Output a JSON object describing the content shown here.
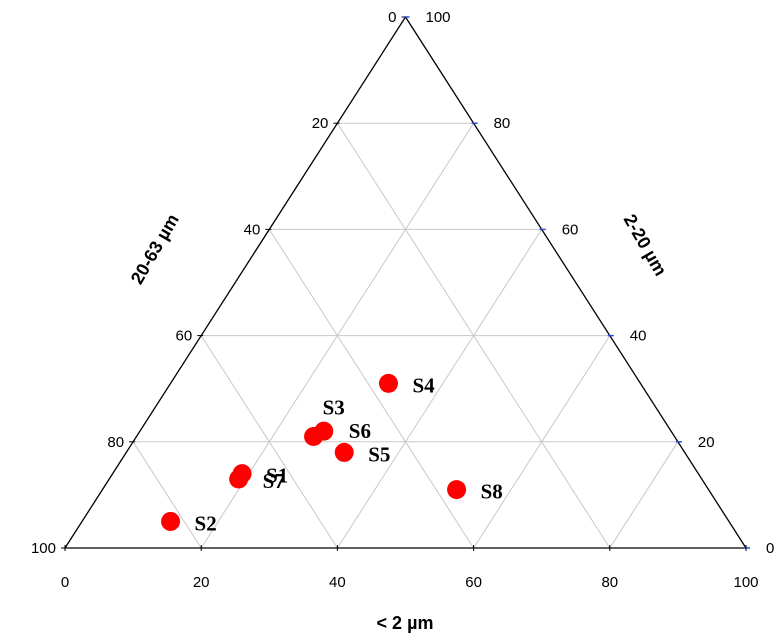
{
  "chart_data": {
    "type": "scatter",
    "subtype": "ternary",
    "axes": {
      "bottom": {
        "label": "< 2 µm",
        "ticks": [
          "0",
          "20",
          "40",
          "60",
          "80",
          "100"
        ],
        "range": [
          0,
          100
        ]
      },
      "left": {
        "label": "20-63 µm",
        "ticks": [
          "0",
          "20",
          "40",
          "60",
          "80",
          "100"
        ],
        "range": [
          0,
          100
        ]
      },
      "right": {
        "label": "2-20 µm",
        "ticks": [
          "0",
          "20",
          "40",
          "60",
          "80",
          "100"
        ],
        "range": [
          0,
          100
        ]
      }
    },
    "grid": true,
    "grid_step": 20,
    "colors": {
      "points": "#ff0000",
      "grid": "#c8c8c8",
      "frame": "#000000",
      "right_ticks": "#2a4fd6"
    },
    "points": [
      {
        "label": "S1",
        "clay": 19,
        "silt_2_20": 14,
        "silt_20_63": 67
      },
      {
        "label": "S2",
        "clay": 13,
        "silt_2_20": 5,
        "silt_20_63": 82
      },
      {
        "label": "S3",
        "clay": 26,
        "silt_2_20": 21,
        "silt_20_63": 53
      },
      {
        "label": "S4",
        "clay": 32,
        "silt_2_20": 31,
        "silt_20_63": 37
      },
      {
        "label": "S5",
        "clay": 32,
        "silt_2_20": 18,
        "silt_20_63": 50
      },
      {
        "label": "S6",
        "clay": 27,
        "silt_2_20": 22,
        "silt_20_63": 51
      },
      {
        "label": "S7",
        "clay": 19,
        "silt_2_20": 13,
        "silt_20_63": 68
      },
      {
        "label": "S8",
        "clay": 52,
        "silt_2_20": 11,
        "silt_20_63": 37
      }
    ]
  }
}
